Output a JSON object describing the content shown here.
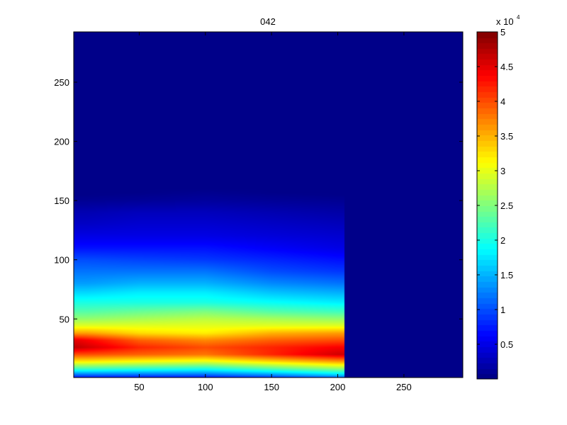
{
  "chart_data": {
    "type": "heatmap",
    "title": "042",
    "xlabel": "",
    "ylabel": "",
    "xlim": [
      0.5,
      294.5
    ],
    "ylim": [
      0.5,
      292.5
    ],
    "x_ticks": [
      50,
      100,
      150,
      200,
      250
    ],
    "y_ticks": [
      50,
      100,
      150,
      200,
      250
    ],
    "colormap": "jet",
    "colorbar": {
      "position": "right",
      "multiplier_label": "x 10",
      "multiplier_exponent": "4",
      "clim": [
        0,
        5
      ],
      "ticks": [
        "0.5",
        "1",
        "1.5",
        "2",
        "2.5",
        "3",
        "3.5",
        "4",
        "4.5",
        "5"
      ]
    },
    "value_units": "x 10^4",
    "background_value": 0.05,
    "data_extent_x": [
      0.5,
      205
    ],
    "x_samples": [
      1,
      10,
      50,
      100,
      150,
      200,
      205
    ],
    "y_samples": [
      2,
      8,
      14,
      20,
      26,
      32,
      38,
      44,
      50,
      56,
      64,
      72,
      80,
      90,
      100,
      110,
      120,
      130,
      140,
      150
    ],
    "values_by_x": [
      [
        1.0,
        2.2,
        3.2,
        4.0,
        4.7,
        4.5,
        3.6,
        3.0,
        2.6,
        2.3,
        2.0,
        1.7,
        1.4,
        1.2,
        1.0,
        0.7,
        0.5,
        0.35,
        0.25,
        0.1
      ],
      [
        1.0,
        2.2,
        3.2,
        4.0,
        4.6,
        4.4,
        3.6,
        3.0,
        2.6,
        2.3,
        2.0,
        1.7,
        1.4,
        1.2,
        1.0,
        0.7,
        0.5,
        0.35,
        0.25,
        0.1
      ],
      [
        1.0,
        2.1,
        3.1,
        3.9,
        4.2,
        3.9,
        3.3,
        3.0,
        2.7,
        2.4,
        2.0,
        1.8,
        1.5,
        1.2,
        0.95,
        0.7,
        0.5,
        0.4,
        0.3,
        0.12
      ],
      [
        1.0,
        2.0,
        3.0,
        3.8,
        4.0,
        3.7,
        3.2,
        3.0,
        2.8,
        2.5,
        2.0,
        1.8,
        1.5,
        1.2,
        0.9,
        0.7,
        0.5,
        0.4,
        0.3,
        0.15
      ],
      [
        1.2,
        2.3,
        3.3,
        4.2,
        4.2,
        3.9,
        3.5,
        3.0,
        2.7,
        2.3,
        1.9,
        1.6,
        1.3,
        1.0,
        0.8,
        0.6,
        0.45,
        0.35,
        0.25,
        0.12
      ],
      [
        1.5,
        2.6,
        3.6,
        4.6,
        4.4,
        4.0,
        3.6,
        3.0,
        2.6,
        2.2,
        1.8,
        1.5,
        1.2,
        0.9,
        0.7,
        0.5,
        0.4,
        0.3,
        0.2,
        0.1
      ],
      [
        1.5,
        2.6,
        3.6,
        4.6,
        4.4,
        4.0,
        3.6,
        3.0,
        2.6,
        2.2,
        1.8,
        1.5,
        1.2,
        0.9,
        0.7,
        0.5,
        0.4,
        0.3,
        0.2,
        0.1
      ]
    ]
  }
}
